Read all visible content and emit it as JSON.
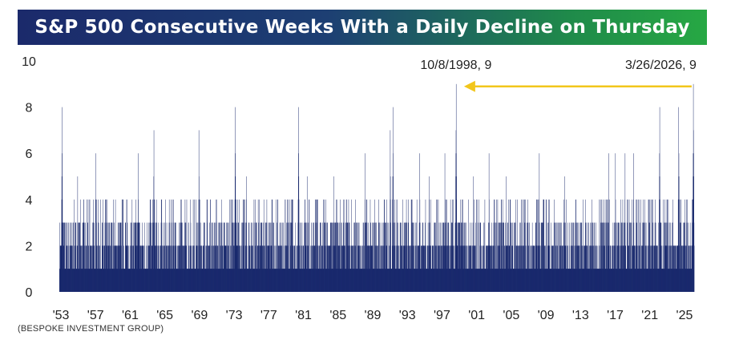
{
  "chart_data": {
    "type": "bar",
    "title": "S&P 500 Consecutive Weeks With a Daily Decline on Thursday",
    "xlabel": "",
    "ylabel": "",
    "ylim": [
      0,
      10
    ],
    "yticks": [
      0,
      2,
      4,
      6,
      8,
      10
    ],
    "xlim": [
      1953.0,
      2026.3
    ],
    "xtick_labels": [
      "'53",
      "'57",
      "'61",
      "'65",
      "'69",
      "'73",
      "'77",
      "'81",
      "'85",
      "'89",
      "'93",
      "'97",
      "'01",
      "'05",
      "'09",
      "'13",
      "'17",
      "'21",
      "'25"
    ],
    "xtick_years": [
      1953,
      1957,
      1961,
      1965,
      1969,
      1973,
      1977,
      1981,
      1985,
      1989,
      1993,
      1997,
      2001,
      2005,
      2009,
      2013,
      2017,
      2021,
      2025
    ],
    "color": "#16266b",
    "peaks": [
      {
        "x": 1953.3,
        "value": 8
      },
      {
        "x": 1955.1,
        "value": 5
      },
      {
        "x": 1956.5,
        "value": 4
      },
      {
        "x": 1957.2,
        "value": 6
      },
      {
        "x": 1958.4,
        "value": 2
      },
      {
        "x": 1959.5,
        "value": 1
      },
      {
        "x": 1960.6,
        "value": 3
      },
      {
        "x": 1962.1,
        "value": 6
      },
      {
        "x": 1963.9,
        "value": 7
      },
      {
        "x": 1965.3,
        "value": 2
      },
      {
        "x": 1966.2,
        "value": 4
      },
      {
        "x": 1967.7,
        "value": 4
      },
      {
        "x": 1969.1,
        "value": 7
      },
      {
        "x": 1970.4,
        "value": 4
      },
      {
        "x": 1971.5,
        "value": 3
      },
      {
        "x": 1972.4,
        "value": 2
      },
      {
        "x": 1973.3,
        "value": 8
      },
      {
        "x": 1974.6,
        "value": 5
      },
      {
        "x": 1975.5,
        "value": 3
      },
      {
        "x": 1976.6,
        "value": 4
      },
      {
        "x": 1977.6,
        "value": 3
      },
      {
        "x": 1979.1,
        "value": 2
      },
      {
        "x": 1980.6,
        "value": 8
      },
      {
        "x": 1981.6,
        "value": 5
      },
      {
        "x": 1982.6,
        "value": 4
      },
      {
        "x": 1983.6,
        "value": 3
      },
      {
        "x": 1984.7,
        "value": 5
      },
      {
        "x": 1985.8,
        "value": 4
      },
      {
        "x": 1986.6,
        "value": 1
      },
      {
        "x": 1987.6,
        "value": 3
      },
      {
        "x": 1988.3,
        "value": 6
      },
      {
        "x": 1989.4,
        "value": 4
      },
      {
        "x": 1990.4,
        "value": 2
      },
      {
        "x": 1991.2,
        "value": 7
      },
      {
        "x": 1991.5,
        "value": 8
      },
      {
        "x": 1992.6,
        "value": 3
      },
      {
        "x": 1993.6,
        "value": 2
      },
      {
        "x": 1994.6,
        "value": 6
      },
      {
        "x": 1995.7,
        "value": 5
      },
      {
        "x": 1996.6,
        "value": 4
      },
      {
        "x": 1997.5,
        "value": 6
      },
      {
        "x": 1998.8,
        "value": 9
      },
      {
        "x": 1999.6,
        "value": 4
      },
      {
        "x": 2000.8,
        "value": 5
      },
      {
        "x": 2001.6,
        "value": 3
      },
      {
        "x": 2002.6,
        "value": 6
      },
      {
        "x": 2003.6,
        "value": 4
      },
      {
        "x": 2004.6,
        "value": 5
      },
      {
        "x": 2005.6,
        "value": 2
      },
      {
        "x": 2006.6,
        "value": 4
      },
      {
        "x": 2007.6,
        "value": 3
      },
      {
        "x": 2008.4,
        "value": 6
      },
      {
        "x": 2009.6,
        "value": 4
      },
      {
        "x": 2010.6,
        "value": 3
      },
      {
        "x": 2011.3,
        "value": 5
      },
      {
        "x": 2012.6,
        "value": 4
      },
      {
        "x": 2013.6,
        "value": 2
      },
      {
        "x": 2014.6,
        "value": 3
      },
      {
        "x": 2015.6,
        "value": 4
      },
      {
        "x": 2016.4,
        "value": 6
      },
      {
        "x": 2017.2,
        "value": 6
      },
      {
        "x": 2018.3,
        "value": 6
      },
      {
        "x": 2019.3,
        "value": 6
      },
      {
        "x": 2020.4,
        "value": 4
      },
      {
        "x": 2021.5,
        "value": 4
      },
      {
        "x": 2022.3,
        "value": 8
      },
      {
        "x": 2023.2,
        "value": 4
      },
      {
        "x": 2023.8,
        "value": 4
      },
      {
        "x": 2024.5,
        "value": 8
      },
      {
        "x": 2025.4,
        "value": 4
      },
      {
        "x": 2026.2,
        "value": 9
      }
    ],
    "annotations": [
      {
        "label": "10/8/1998, 9",
        "x": 1998.8,
        "y": 9
      },
      {
        "label": "3/26/2026, 9",
        "x": 2026.2,
        "y": 9
      }
    ],
    "arrow_color": "#f2c61c"
  },
  "source": "(BESPOKE INVESTMENT GROUP)"
}
